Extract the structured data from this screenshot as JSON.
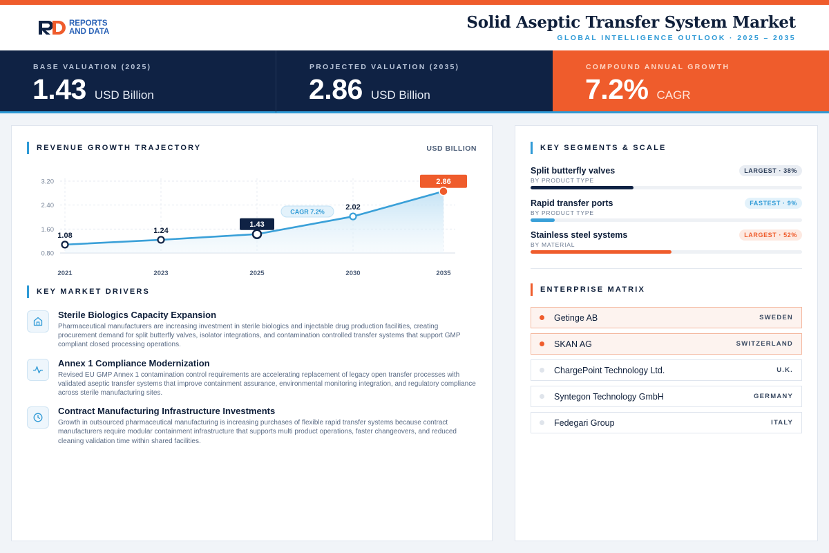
{
  "brand": {
    "line1": "REPORTS",
    "line2": "AND DATA"
  },
  "header": {
    "title": "Solid Aseptic Transfer System Market",
    "subtitle": "GLOBAL INTELLIGENCE OUTLOOK · 2025 – 2035"
  },
  "kpis": [
    {
      "label": "BASE VALUATION (2025)",
      "value": "1.43",
      "unit": "USD Billion"
    },
    {
      "label": "PROJECTED VALUATION (2035)",
      "value": "2.86",
      "unit": "USD Billion"
    },
    {
      "label": "COMPOUND ANNUAL GROWTH",
      "value": "7.2%",
      "unit": "CAGR"
    }
  ],
  "growth": {
    "section_title": "REVENUE GROWTH TRAJECTORY",
    "unit_label": "USD BILLION"
  },
  "chart_data": {
    "type": "area",
    "title": "REVENUE GROWTH TRAJECTORY",
    "ylabel": "USD BILLION",
    "categories": [
      "2021",
      "2023",
      "2025",
      "2030",
      "2035"
    ],
    "values": [
      1.08,
      1.24,
      1.43,
      2.02,
      2.86
    ],
    "value_labels": [
      "1.08",
      "1.24",
      "1.43",
      "2.02",
      "2.86"
    ],
    "y_ticks": [
      "0.80",
      "1.60",
      "2.40",
      "3.20"
    ],
    "ylim": [
      0.8,
      3.2
    ],
    "annotation": "CAGR 7.2%",
    "grid": true,
    "colors": {
      "line": "#3aa0d8",
      "highlight": "#0f2244",
      "end": "#ef5c2c"
    }
  },
  "drivers": {
    "section_title": "KEY MARKET DRIVERS",
    "items": [
      {
        "icon": "building-icon",
        "title": "Sterile Biologics Capacity Expansion",
        "text": "Pharmaceutical manufacturers are increasing investment in sterile biologics and injectable drug production facilities, creating procurement demand for split butterfly valves, isolator integrations, and contamination controlled transfer systems that support GMP compliant closed processing operations."
      },
      {
        "icon": "activity-icon",
        "title": "Annex 1 Compliance Modernization",
        "text": "Revised EU GMP Annex 1 contamination control requirements are accelerating replacement of legacy open transfer processes with validated aseptic transfer systems that improve containment assurance, environmental monitoring integration, and regulatory compliance across sterile manufacturing sites."
      },
      {
        "icon": "clock-icon",
        "title": "Contract Manufacturing Infrastructure Investments",
        "text": "Growth in outsourced pharmaceutical manufacturing is increasing purchases of flexible rapid transfer systems because contract manufacturers require modular containment infrastructure that supports multi product operations, faster changeovers, and reduced cleaning validation time within shared facilities."
      }
    ]
  },
  "segments": {
    "section_title": "KEY SEGMENTS & SCALE",
    "items": [
      {
        "name": "Split butterfly valves",
        "category": "BY PRODUCT TYPE",
        "badge": "LARGEST · 38%",
        "share": 0.38,
        "color": "#0f2244",
        "badge_style": "gray"
      },
      {
        "name": "Rapid transfer ports",
        "category": "BY PRODUCT TYPE",
        "badge": "FASTEST · 9%",
        "share": 0.09,
        "color": "#3aa0d8",
        "badge_style": "blue"
      },
      {
        "name": "Stainless steel systems",
        "category": "BY MATERIAL",
        "badge": "LARGEST · 52%",
        "share": 0.52,
        "color": "#ef5c2c",
        "badge_style": "peach"
      }
    ]
  },
  "enterprise": {
    "section_title": "ENTERPRISE MATRIX",
    "items": [
      {
        "name": "Getinge AB",
        "country": "SWEDEN",
        "highlight": true
      },
      {
        "name": "SKAN AG",
        "country": "SWITZERLAND",
        "highlight": true
      },
      {
        "name": "ChargePoint Technology Ltd.",
        "country": "U.K.",
        "highlight": false
      },
      {
        "name": "Syntegon Technology GmbH",
        "country": "GERMANY",
        "highlight": false
      },
      {
        "name": "Fedegari Group",
        "country": "ITALY",
        "highlight": false
      }
    ]
  }
}
